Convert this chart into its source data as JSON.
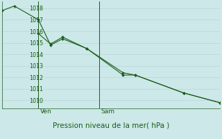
{
  "background_color": "#cce8e8",
  "grid_color": "#b8d4d4",
  "line_color": "#1a5c1a",
  "marker_color": "#1a5c1a",
  "xlabel": "Pression niveau de la mer( hPa )",
  "xlabel_fontsize": 7.5,
  "ylim": [
    1009.3,
    1018.6
  ],
  "yticks": [
    1010,
    1011,
    1012,
    1013,
    1014,
    1015,
    1016,
    1017,
    1018
  ],
  "ytick_fontsize": 5.8,
  "xtick_fontsize": 6.5,
  "vline_labels": [
    "Ven",
    "Sam"
  ],
  "series1_x": [
    0,
    0.5,
    1.5,
    2.0,
    2.5,
    3.5,
    5.0,
    5.5,
    7.5,
    9.0
  ],
  "series1_y": [
    1017.8,
    1018.2,
    1017.0,
    1014.8,
    1015.35,
    1014.5,
    1012.4,
    1012.2,
    1010.65,
    1009.8
  ],
  "series2_x": [
    1.5,
    2.0,
    2.5,
    3.5,
    5.0,
    5.5,
    7.5,
    9.0
  ],
  "series2_y": [
    1015.8,
    1014.9,
    1015.5,
    1014.5,
    1012.2,
    1012.2,
    1010.65,
    1009.8
  ],
  "vline_positions": [
    1.5,
    4.0
  ],
  "xlim": [
    0,
    9.0
  ]
}
